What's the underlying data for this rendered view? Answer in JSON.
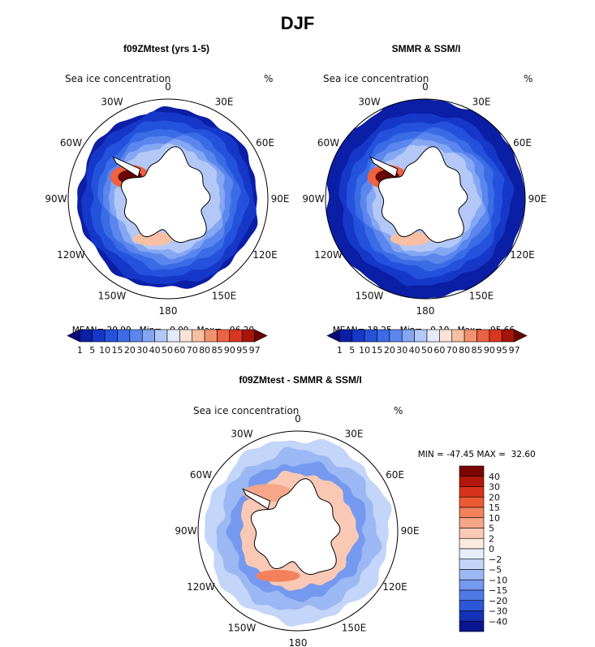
{
  "figure_title": "DJF",
  "chart_data": [
    {
      "type": "heatmap",
      "panel": "polar-map",
      "title": "f09ZMtest (yrs 1-5)",
      "field": "Sea ice concentration",
      "units": "%",
      "longitude_labels": [
        "0",
        "30E",
        "60E",
        "90E",
        "120E",
        "150E",
        "180",
        "150W",
        "120W",
        "90W",
        "60W",
        "30W"
      ],
      "stats": {
        "mean_label": "MEAN=",
        "mean": "20.99",
        "min_label": "Min=",
        "min": "0.00",
        "max_label": "Max=",
        "max": "96.20"
      },
      "colorbar": {
        "ticks": [
          "1",
          "5",
          "10",
          "15",
          "20",
          "30",
          "40",
          "50",
          "60",
          "70",
          "80",
          "85",
          "90",
          "95",
          "97"
        ],
        "colors": [
          "#08087a",
          "#0b1ea6",
          "#1638c8",
          "#2552dd",
          "#3a6ce6",
          "#5a86ee",
          "#84a6f3",
          "#b4c8f7",
          "#e2eafb",
          "#fbe3d8",
          "#f8bfa4",
          "#f3936e",
          "#ec6242",
          "#d8361f",
          "#a81508",
          "#6b0404"
        ]
      }
    },
    {
      "type": "heatmap",
      "panel": "polar-map",
      "title": "SMMR & SSM/I",
      "field": "Sea ice concentration",
      "units": "%",
      "longitude_labels": [
        "0",
        "30E",
        "60E",
        "90E",
        "120E",
        "150E",
        "180",
        "150W",
        "120W",
        "90W",
        "60W",
        "30W"
      ],
      "stats": {
        "mean_label": "MEAN=",
        "mean": "18.25",
        "min_label": "Min=",
        "min": "0.10",
        "max_label": "Max=",
        "max": "95.66"
      },
      "colorbar": {
        "ticks": [
          "1",
          "5",
          "10",
          "15",
          "20",
          "30",
          "40",
          "50",
          "60",
          "70",
          "80",
          "85",
          "90",
          "95",
          "97"
        ],
        "colors": [
          "#08087a",
          "#0b1ea6",
          "#1638c8",
          "#2552dd",
          "#3a6ce6",
          "#5a86ee",
          "#84a6f3",
          "#b4c8f7",
          "#e2eafb",
          "#fbe3d8",
          "#f8bfa4",
          "#f3936e",
          "#ec6242",
          "#d8361f",
          "#a81508",
          "#6b0404"
        ]
      }
    },
    {
      "type": "heatmap",
      "panel": "polar-map-difference",
      "title": "f09ZMtest - SMMR & SSM/I",
      "field": "Sea ice concentration",
      "units": "%",
      "longitude_labels": [
        "0",
        "30E",
        "60E",
        "90E",
        "120E",
        "150E",
        "180",
        "150W",
        "120W",
        "90W",
        "60W",
        "30W"
      ],
      "stats": {
        "min_label": "MIN =",
        "min": "-47.45",
        "max_label": "MAX =",
        "max": "32.60"
      },
      "colorbar": {
        "ticks": [
          "40",
          "30",
          "20",
          "15",
          "10",
          "5",
          "2",
          "0",
          "−2",
          "−5",
          "−10",
          "−15",
          "−20",
          "−30",
          "−40"
        ],
        "colors": [
          "#7a0303",
          "#b31707",
          "#d8331a",
          "#ec5a36",
          "#f3815c",
          "#f6a689",
          "#f9c9b5",
          "#fce9df",
          "#e6eefc",
          "#c3d5f8",
          "#9bb8f4",
          "#7599ee",
          "#4f7ae6",
          "#2c57d9",
          "#1532b6",
          "#0a1690"
        ]
      }
    }
  ]
}
